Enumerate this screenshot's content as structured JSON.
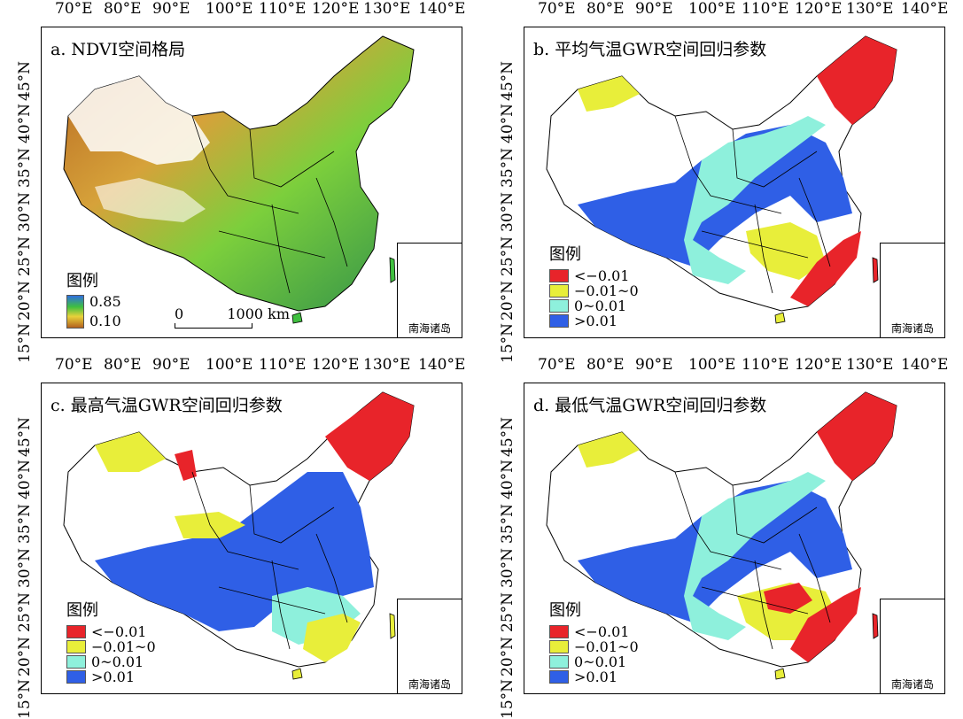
{
  "lon_labels": [
    "70°E",
    "80°E",
    "90°E",
    "100°E",
    "110°E",
    "120°E",
    "130°E",
    "140°E"
  ],
  "lat_labels": [
    "15°N",
    "20°N",
    "25°N",
    "30°N",
    "35°N",
    "40°N",
    "45°N"
  ],
  "colors": {
    "neg_strong": "#e8242a",
    "neg_weak": "#e8ee3a",
    "pos_weak": "#8ef0dc",
    "pos_strong": "#2f5fe6"
  },
  "panels": [
    {
      "title": "a. NDVI空间格局",
      "legend_title": "图例",
      "legend_type": "gradient",
      "gradient_max": "0.85",
      "gradient_min": "0.10",
      "scale_label": "1000 km",
      "scale_zero": "0",
      "inset_label": "南海诸岛"
    },
    {
      "title": "b. 平均气温GWR空间回归参数",
      "legend_title": "图例",
      "legend_type": "classes",
      "classes": [
        "<−0.01",
        "−0.01~0",
        "0~0.01",
        ">0.01"
      ],
      "inset_label": "南海诸岛"
    },
    {
      "title": "c. 最高气温GWR空间回归参数",
      "legend_title": "图例",
      "legend_type": "classes",
      "classes": [
        "<−0.01",
        "−0.01~0",
        "0~0.01",
        ">0.01"
      ],
      "inset_label": "南海诸岛"
    },
    {
      "title": "d. 最低气温GWR空间回归参数",
      "legend_title": "图例",
      "legend_type": "classes",
      "classes": [
        "<−0.01",
        "−0.01~0",
        "0~0.01",
        ">0.01"
      ],
      "inset_label": "南海诸岛"
    }
  ]
}
